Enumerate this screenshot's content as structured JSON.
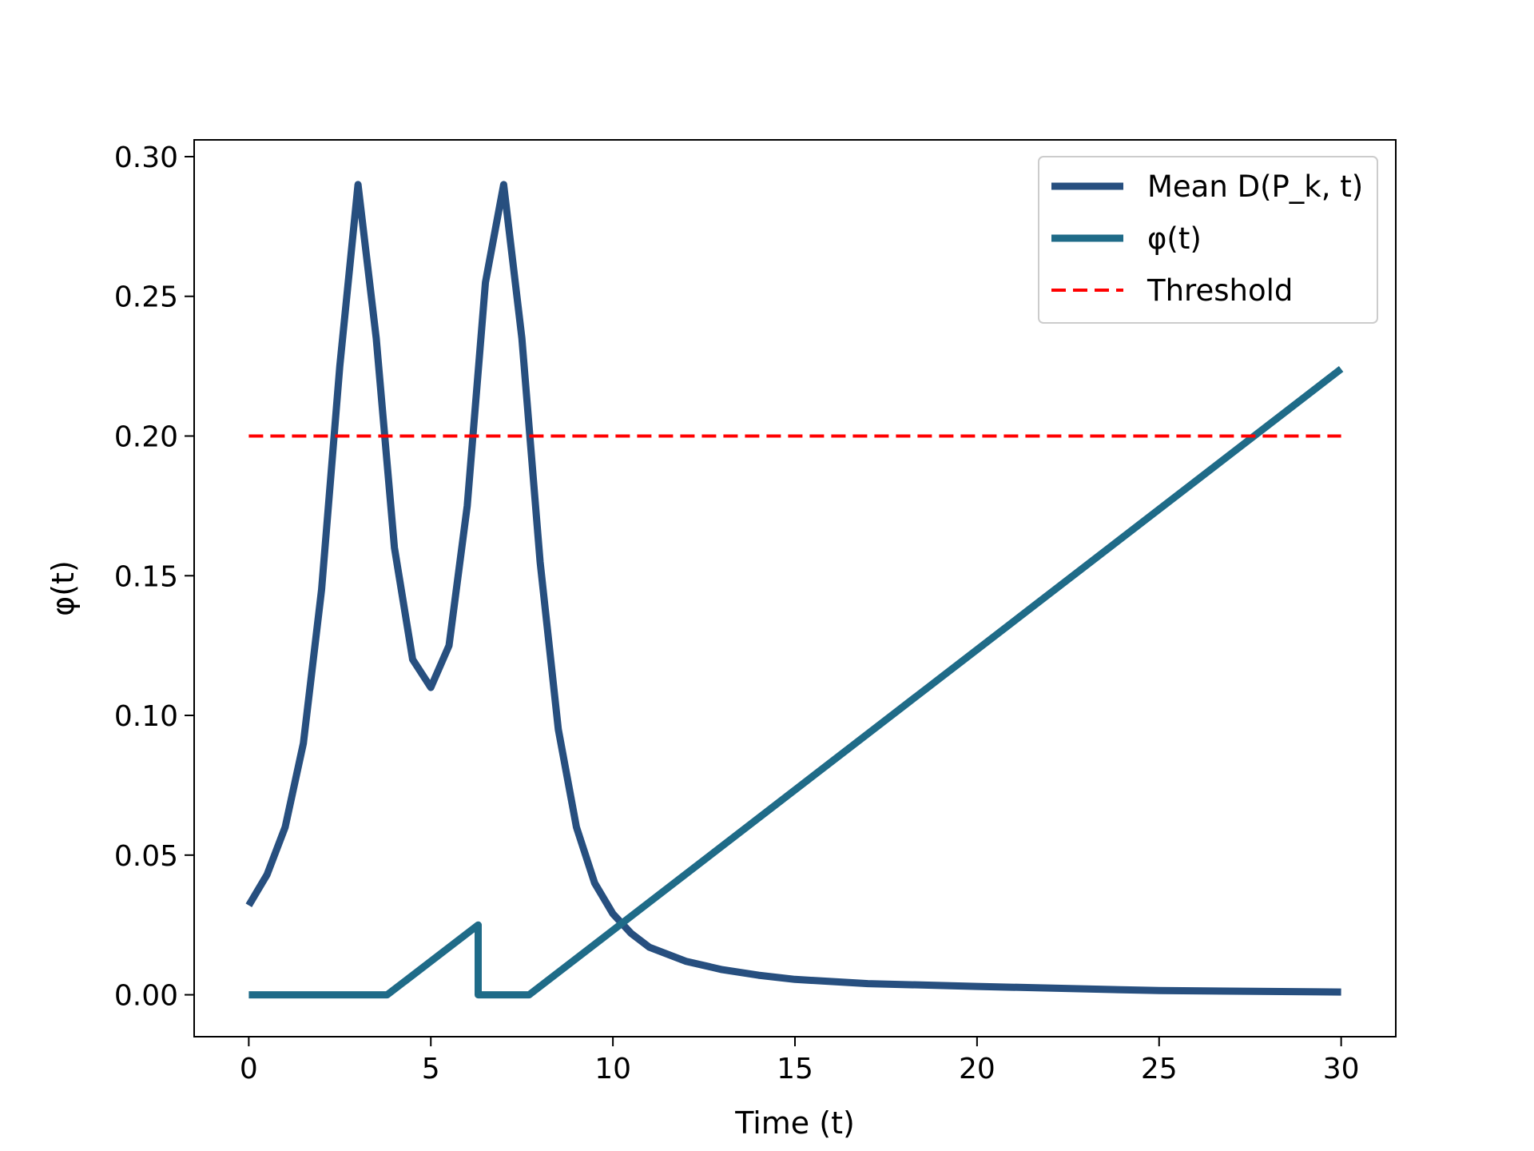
{
  "chart_data": {
    "type": "line",
    "title": "",
    "xlabel": "Time (t)",
    "ylabel": "φ(t)",
    "xlim": [
      -1.5,
      31.5
    ],
    "ylim": [
      -0.015,
      0.306
    ],
    "xticks": [
      0,
      5,
      10,
      15,
      20,
      25,
      30
    ],
    "yticks": [
      0.0,
      0.05,
      0.1,
      0.15,
      0.2,
      0.25,
      0.3
    ],
    "grid": false,
    "legend_position": "upper right",
    "series": [
      {
        "name": "Mean D(P_k, t)",
        "color": "#274f7f",
        "style": "solid",
        "x": [
          0,
          0.5,
          1,
          1.5,
          2,
          2.5,
          3,
          3.5,
          4,
          4.5,
          5,
          5.5,
          6,
          6.5,
          7,
          7.5,
          8,
          8.5,
          9,
          9.5,
          10,
          10.5,
          11,
          12,
          13,
          14,
          15,
          17,
          20,
          25,
          30
        ],
        "y": [
          0.032,
          0.043,
          0.06,
          0.09,
          0.145,
          0.225,
          0.29,
          0.235,
          0.16,
          0.12,
          0.11,
          0.125,
          0.175,
          0.255,
          0.29,
          0.235,
          0.155,
          0.095,
          0.06,
          0.04,
          0.029,
          0.022,
          0.017,
          0.012,
          0.009,
          0.007,
          0.0055,
          0.004,
          0.003,
          0.0015,
          0.001
        ]
      },
      {
        "name": "φ(t)",
        "color": "#1f6b88",
        "style": "solid",
        "x": [
          0,
          3.8,
          6.3,
          6.3,
          7.7,
          30
        ],
        "y": [
          0.0,
          0.0,
          0.025,
          0.0,
          0.0,
          0.224
        ]
      },
      {
        "name": "Threshold",
        "color": "#ff0000",
        "style": "dashed",
        "x": [
          0,
          30
        ],
        "y": [
          0.2,
          0.2
        ]
      }
    ]
  }
}
